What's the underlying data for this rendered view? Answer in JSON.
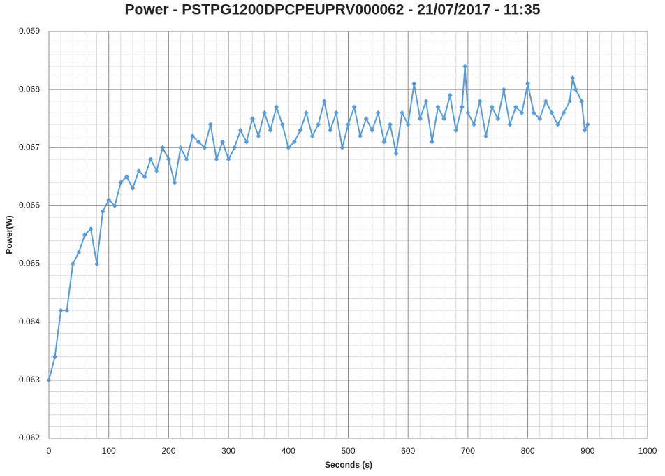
{
  "chart_data": {
    "type": "line",
    "title": "Power - PSTPG1200DPCPEUPRV000062 - 21/07/2017 - 11:35",
    "x_label": "Seconds (s)",
    "y_label": "Power(W)",
    "xlim": [
      0,
      1000
    ],
    "xticks": [
      0,
      100,
      200,
      300,
      400,
      500,
      600,
      700,
      800,
      900,
      1000
    ],
    "ylim": [
      0.062,
      0.069
    ],
    "yticks": [
      0.062,
      0.063,
      0.064,
      0.065,
      0.066,
      0.067,
      0.068,
      0.069
    ],
    "grid": true,
    "minor_divisions": 5,
    "series": [
      {
        "name": "Power",
        "color": "#5b9bd5",
        "x": [
          0,
          10,
          20,
          30,
          40,
          50,
          60,
          70,
          80,
          90,
          100,
          110,
          120,
          130,
          140,
          150,
          160,
          170,
          180,
          190,
          200,
          210,
          220,
          230,
          240,
          250,
          260,
          270,
          280,
          290,
          300,
          310,
          320,
          330,
          340,
          350,
          360,
          370,
          380,
          390,
          400,
          410,
          420,
          430,
          440,
          450,
          460,
          470,
          480,
          490,
          500,
          510,
          520,
          530,
          540,
          550,
          560,
          570,
          580,
          590,
          600,
          610,
          620,
          630,
          640,
          650,
          660,
          670,
          680,
          690,
          695,
          700,
          710,
          720,
          730,
          740,
          750,
          760,
          770,
          780,
          790,
          800,
          810,
          820,
          830,
          840,
          850,
          860,
          870,
          875,
          880,
          890,
          895,
          900
        ],
        "values": [
          0.063,
          0.0634,
          0.0642,
          0.0642,
          0.065,
          0.0652,
          0.0655,
          0.0656,
          0.065,
          0.0659,
          0.0661,
          0.066,
          0.0664,
          0.0665,
          0.0663,
          0.0666,
          0.0665,
          0.0668,
          0.0666,
          0.067,
          0.0668,
          0.0664,
          0.067,
          0.0668,
          0.0672,
          0.0671,
          0.067,
          0.0674,
          0.0668,
          0.0671,
          0.0668,
          0.067,
          0.0673,
          0.0671,
          0.0675,
          0.0672,
          0.0676,
          0.0673,
          0.0677,
          0.0674,
          0.067,
          0.0671,
          0.0673,
          0.0676,
          0.0672,
          0.0674,
          0.0678,
          0.0673,
          0.0676,
          0.067,
          0.0674,
          0.0677,
          0.0672,
          0.0675,
          0.0673,
          0.0676,
          0.0671,
          0.0674,
          0.0669,
          0.0676,
          0.0674,
          0.0681,
          0.0675,
          0.0678,
          0.0671,
          0.0677,
          0.0675,
          0.0679,
          0.0673,
          0.0677,
          0.0684,
          0.0676,
          0.0674,
          0.0678,
          0.0672,
          0.0677,
          0.0675,
          0.068,
          0.0674,
          0.0677,
          0.0676,
          0.0681,
          0.0676,
          0.0675,
          0.0678,
          0.0676,
          0.0674,
          0.0676,
          0.0678,
          0.0682,
          0.068,
          0.0678,
          0.0673,
          0.0674
        ]
      }
    ]
  }
}
